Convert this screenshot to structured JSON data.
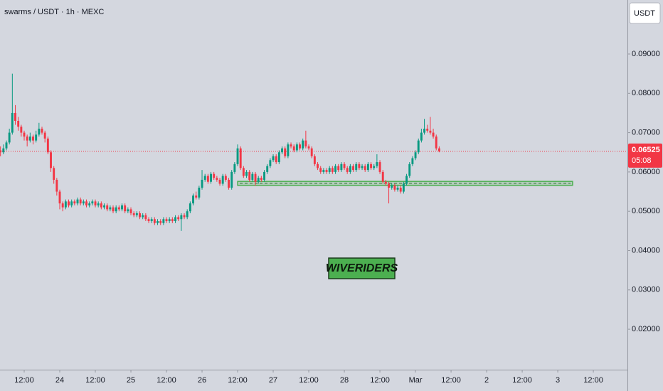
{
  "chart_data": {
    "type": "candlestick",
    "title": "swarms / USDT · 1h · MEXC",
    "currency": "USDT",
    "countdown": "05:08",
    "annotation": "WIVERIDERS",
    "up_color": "#089981",
    "down_color": "#f23645",
    "last_price": 0.06525,
    "xlim": [
      -20.16,
      191.5
    ],
    "ylim": [
      0.00971,
      0.10374
    ],
    "xticks": [
      {
        "value": -12,
        "label": "12:00"
      },
      {
        "value": 0,
        "label": "24"
      },
      {
        "value": 12,
        "label": "12:00"
      },
      {
        "value": 24,
        "label": "25"
      },
      {
        "value": 36,
        "label": "12:00"
      },
      {
        "value": 48,
        "label": "26"
      },
      {
        "value": 60,
        "label": "12:00"
      },
      {
        "value": 72,
        "label": "27"
      },
      {
        "value": 84,
        "label": "12:00"
      },
      {
        "value": 96,
        "label": "28"
      },
      {
        "value": 108,
        "label": "12:00"
      },
      {
        "value": 120,
        "label": "Mar"
      },
      {
        "value": 132,
        "label": "12:00"
      },
      {
        "value": 144,
        "label": "2"
      },
      {
        "value": 156,
        "label": "12:00"
      },
      {
        "value": 168,
        "label": "3"
      },
      {
        "value": 180,
        "label": "12:00"
      }
    ],
    "yticks": [
      {
        "value": 0.02,
        "label": "0.02000"
      },
      {
        "value": 0.03,
        "label": "0.03000"
      },
      {
        "value": 0.04,
        "label": "0.04000"
      },
      {
        "value": 0.05,
        "label": "0.05000"
      },
      {
        "value": 0.06,
        "label": "0.06000"
      },
      {
        "value": 0.07,
        "label": "0.07000"
      },
      {
        "value": 0.08,
        "label": "0.08000"
      },
      {
        "value": 0.09,
        "label": "0.09000"
      }
    ],
    "zone": {
      "x": [
        60,
        173
      ],
      "y": [
        0.0566,
        0.0576
      ],
      "color": "#4caf50"
    },
    "x": [
      -20,
      -19,
      -18,
      -17,
      -16,
      -15,
      -14,
      -13,
      -12,
      -11,
      -10,
      -9,
      -8,
      -7,
      -6,
      -5,
      -4,
      -3,
      -2,
      -1,
      0,
      1,
      2,
      3,
      4,
      5,
      6,
      7,
      8,
      9,
      10,
      11,
      12,
      13,
      14,
      15,
      16,
      17,
      18,
      19,
      20,
      21,
      22,
      23,
      24,
      25,
      26,
      27,
      28,
      29,
      30,
      31,
      32,
      33,
      34,
      35,
      36,
      37,
      38,
      39,
      40,
      41,
      42,
      43,
      44,
      45,
      46,
      47,
      48,
      49,
      50,
      51,
      52,
      53,
      54,
      55,
      56,
      57,
      58,
      59,
      60,
      61,
      62,
      63,
      64,
      65,
      66,
      67,
      68,
      69,
      70,
      71,
      72,
      73,
      74,
      75,
      76,
      77,
      78,
      79,
      80,
      81,
      82,
      83,
      84,
      85,
      86,
      87,
      88,
      89,
      90,
      91,
      92,
      93,
      94,
      95,
      96,
      97,
      98,
      99,
      100,
      101,
      102,
      103,
      104,
      105,
      106,
      107,
      108,
      109,
      110,
      111,
      112,
      113,
      114,
      115,
      116,
      117,
      118,
      119,
      120,
      121,
      122,
      123,
      124,
      125,
      126,
      127,
      128
    ],
    "open": [
      0.0655,
      0.065,
      0.066,
      0.0675,
      0.07,
      0.075,
      0.073,
      0.0715,
      0.07,
      0.069,
      0.068,
      0.069,
      0.068,
      0.0695,
      0.071,
      0.07,
      0.0685,
      0.065,
      0.061,
      0.058,
      0.055,
      0.052,
      0.051,
      0.0525,
      0.0515,
      0.0525,
      0.052,
      0.053,
      0.052,
      0.0525,
      0.0515,
      0.052,
      0.0525,
      0.0515,
      0.052,
      0.051,
      0.0515,
      0.0505,
      0.051,
      0.05,
      0.051,
      0.0505,
      0.0515,
      0.05,
      0.0505,
      0.0495,
      0.049,
      0.0495,
      0.0485,
      0.049,
      0.048,
      0.0475,
      0.048,
      0.047,
      0.0475,
      0.047,
      0.048,
      0.0475,
      0.048,
      0.0475,
      0.0485,
      0.048,
      0.049,
      0.0485,
      0.05,
      0.052,
      0.054,
      0.0535,
      0.056,
      0.058,
      0.059,
      0.0575,
      0.0595,
      0.0585,
      0.058,
      0.057,
      0.059,
      0.058,
      0.056,
      0.06,
      0.062,
      0.066,
      0.061,
      0.059,
      0.06,
      0.058,
      0.0595,
      0.0575,
      0.0585,
      0.058,
      0.06,
      0.0615,
      0.063,
      0.064,
      0.0625,
      0.065,
      0.066,
      0.064,
      0.067,
      0.0665,
      0.0655,
      0.067,
      0.066,
      0.068,
      0.0665,
      0.066,
      0.064,
      0.062,
      0.061,
      0.06,
      0.0605,
      0.06,
      0.061,
      0.06,
      0.0615,
      0.0605,
      0.062,
      0.061,
      0.06,
      0.0615,
      0.0605,
      0.062,
      0.061,
      0.0615,
      0.0605,
      0.062,
      0.061,
      0.0615,
      0.0625,
      0.06,
      0.0575,
      0.057,
      0.056,
      0.0565,
      0.0555,
      0.056,
      0.055,
      0.057,
      0.059,
      0.062,
      0.0635,
      0.065,
      0.068,
      0.07,
      0.071,
      0.0705,
      0.07,
      0.069,
      0.066
    ],
    "high": [
      0.0665,
      0.067,
      0.068,
      0.071,
      0.085,
      0.077,
      0.074,
      0.072,
      0.0705,
      0.0695,
      0.07,
      0.0695,
      0.0705,
      0.0725,
      0.0715,
      0.0705,
      0.069,
      0.0655,
      0.0615,
      0.0585,
      0.0555,
      0.0525,
      0.053,
      0.053,
      0.053,
      0.053,
      0.0535,
      0.0535,
      0.053,
      0.053,
      0.0525,
      0.053,
      0.053,
      0.0525,
      0.0525,
      0.052,
      0.052,
      0.0515,
      0.0515,
      0.0515,
      0.0515,
      0.052,
      0.052,
      0.051,
      0.051,
      0.05,
      0.05,
      0.05,
      0.0495,
      0.0495,
      0.0485,
      0.0485,
      0.0485,
      0.048,
      0.048,
      0.0485,
      0.0485,
      0.0485,
      0.0485,
      0.049,
      0.049,
      0.0495,
      0.0495,
      0.0505,
      0.0525,
      0.0545,
      0.055,
      0.0565,
      0.0605,
      0.0595,
      0.0595,
      0.06,
      0.06,
      0.059,
      0.0585,
      0.0595,
      0.0595,
      0.0585,
      0.0605,
      0.0625,
      0.067,
      0.0665,
      0.0615,
      0.0605,
      0.0605,
      0.06,
      0.06,
      0.059,
      0.059,
      0.0605,
      0.062,
      0.0635,
      0.0645,
      0.0645,
      0.0655,
      0.0665,
      0.0665,
      0.0675,
      0.0675,
      0.067,
      0.0675,
      0.0675,
      0.0685,
      0.0705,
      0.067,
      0.0665,
      0.0645,
      0.0625,
      0.0615,
      0.061,
      0.061,
      0.0615,
      0.0615,
      0.062,
      0.062,
      0.0625,
      0.0625,
      0.0615,
      0.062,
      0.062,
      0.0625,
      0.0625,
      0.062,
      0.062,
      0.0625,
      0.0625,
      0.062,
      0.0645,
      0.063,
      0.0605,
      0.058,
      0.0575,
      0.057,
      0.057,
      0.0565,
      0.0565,
      0.0575,
      0.0595,
      0.0625,
      0.064,
      0.0655,
      0.0685,
      0.071,
      0.0735,
      0.072,
      0.074,
      0.071,
      0.0695,
      0.0665
    ],
    "low": [
      0.064,
      0.0645,
      0.0655,
      0.067,
      0.0695,
      0.072,
      0.0705,
      0.069,
      0.068,
      0.0665,
      0.0675,
      0.067,
      0.0675,
      0.069,
      0.0695,
      0.0675,
      0.0645,
      0.06,
      0.057,
      0.054,
      0.0505,
      0.05,
      0.0505,
      0.051,
      0.051,
      0.0515,
      0.0515,
      0.0515,
      0.0515,
      0.051,
      0.051,
      0.0515,
      0.051,
      0.051,
      0.0505,
      0.0505,
      0.05,
      0.05,
      0.0495,
      0.0495,
      0.05,
      0.05,
      0.0495,
      0.0495,
      0.049,
      0.0485,
      0.0485,
      0.048,
      0.048,
      0.0475,
      0.047,
      0.047,
      0.0465,
      0.0465,
      0.0465,
      0.0465,
      0.047,
      0.047,
      0.047,
      0.047,
      0.0475,
      0.045,
      0.048,
      0.048,
      0.0495,
      0.0515,
      0.053,
      0.053,
      0.0555,
      0.0575,
      0.057,
      0.057,
      0.058,
      0.0575,
      0.0565,
      0.0565,
      0.0575,
      0.0555,
      0.0555,
      0.0595,
      0.0615,
      0.0605,
      0.0585,
      0.0585,
      0.0575,
      0.0575,
      0.0565,
      0.057,
      0.0575,
      0.0575,
      0.0595,
      0.061,
      0.0625,
      0.062,
      0.062,
      0.0645,
      0.0635,
      0.0635,
      0.066,
      0.065,
      0.065,
      0.0655,
      0.0655,
      0.066,
      0.0655,
      0.0635,
      0.0615,
      0.0605,
      0.0595,
      0.0595,
      0.0595,
      0.0595,
      0.0595,
      0.0595,
      0.06,
      0.06,
      0.0605,
      0.0595,
      0.0595,
      0.06,
      0.06,
      0.0605,
      0.0605,
      0.06,
      0.06,
      0.0605,
      0.0605,
      0.061,
      0.0595,
      0.057,
      0.0565,
      0.052,
      0.0555,
      0.055,
      0.055,
      0.0545,
      0.0545,
      0.0565,
      0.0585,
      0.0615,
      0.063,
      0.0645,
      0.0675,
      0.0695,
      0.07,
      0.0695,
      0.0685,
      0.0655,
      0.065
    ],
    "close": [
      0.065,
      0.066,
      0.0675,
      0.07,
      0.075,
      0.073,
      0.0715,
      0.07,
      0.069,
      0.068,
      0.069,
      0.068,
      0.0695,
      0.071,
      0.07,
      0.0685,
      0.065,
      0.061,
      0.058,
      0.055,
      0.052,
      0.051,
      0.0525,
      0.0515,
      0.0525,
      0.052,
      0.053,
      0.052,
      0.0525,
      0.0515,
      0.052,
      0.0525,
      0.0515,
      0.052,
      0.051,
      0.0515,
      0.0505,
      0.051,
      0.05,
      0.051,
      0.0505,
      0.0515,
      0.05,
      0.0505,
      0.0495,
      0.049,
      0.0495,
      0.0485,
      0.049,
      0.048,
      0.0475,
      0.048,
      0.047,
      0.0475,
      0.047,
      0.048,
      0.0475,
      0.048,
      0.0475,
      0.0485,
      0.048,
      0.049,
      0.0485,
      0.05,
      0.052,
      0.054,
      0.0535,
      0.056,
      0.058,
      0.059,
      0.0575,
      0.0595,
      0.0585,
      0.058,
      0.057,
      0.059,
      0.058,
      0.056,
      0.06,
      0.062,
      0.066,
      0.061,
      0.059,
      0.06,
      0.058,
      0.0595,
      0.0575,
      0.0585,
      0.058,
      0.06,
      0.0615,
      0.063,
      0.064,
      0.0625,
      0.065,
      0.066,
      0.064,
      0.067,
      0.0665,
      0.0655,
      0.067,
      0.066,
      0.068,
      0.0665,
      0.066,
      0.064,
      0.062,
      0.061,
      0.06,
      0.0605,
      0.06,
      0.061,
      0.06,
      0.0615,
      0.0605,
      0.062,
      0.061,
      0.06,
      0.0615,
      0.0605,
      0.062,
      0.061,
      0.0615,
      0.0605,
      0.062,
      0.061,
      0.0615,
      0.0625,
      0.06,
      0.0575,
      0.057,
      0.056,
      0.0565,
      0.0555,
      0.056,
      0.055,
      0.057,
      0.059,
      0.062,
      0.0635,
      0.065,
      0.068,
      0.07,
      0.071,
      0.0705,
      0.07,
      0.069,
      0.066,
      0.06525
    ]
  }
}
